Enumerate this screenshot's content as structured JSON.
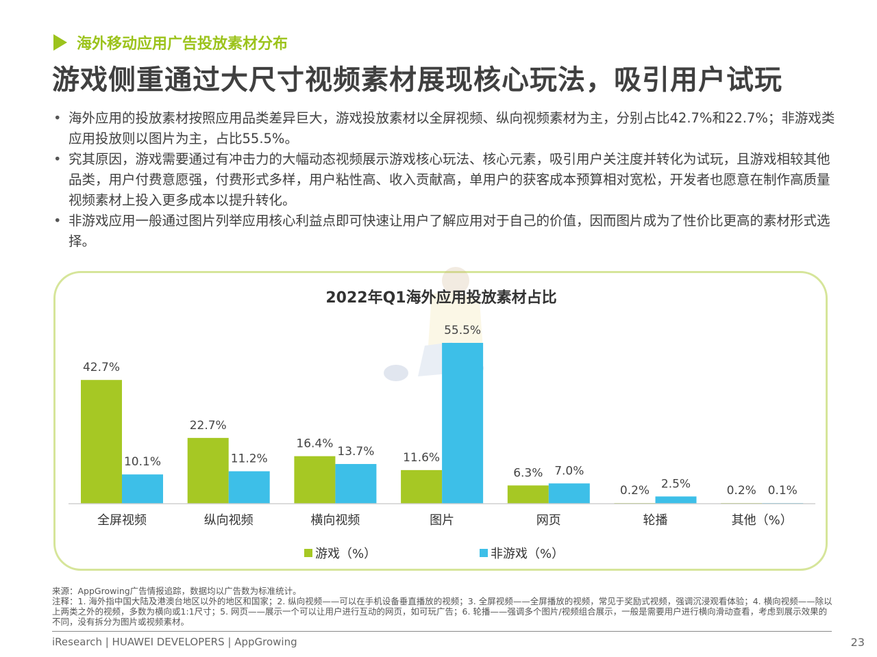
{
  "section_label": "海外移动应用广告投放素材分布",
  "headline": "游戏侧重通过大尺寸视频素材展现核心玩法，吸引用户试玩",
  "bullets": [
    "海外应用的投放素材按照应用品类差异巨大，游戏投放素材以全屏视频、纵向视频素材为主，分别占比42.7%和22.7%；非游戏类应用投放则以图片为主，占比55.5%。",
    "究其原因，游戏需要通过有冲击力的大幅动态视频展示游戏核心玩法、核心元素，吸引用户关注度并转化为试玩，且游戏相较其他品类，用户付费意愿强，付费形式多样，用户粘性高、收入贡献高，单用户的获客成本预算相对宽松，开发者也愿意在制作高质量视频素材上投入更多成本以提升转化。",
    "非游戏应用一般通过图片列举应用核心利益点即可快速让用户了解应用对于自己的价值，因而图片成为了性价比更高的素材形式选择。"
  ],
  "chart_data": {
    "type": "bar",
    "title": "2022年Q1海外应用投放素材占比",
    "categories": [
      "全屏视频",
      "纵向视频",
      "横向视频",
      "图片",
      "网页",
      "轮播",
      "其他（%）"
    ],
    "series": [
      {
        "name": "游戏（%）",
        "values": [
          42.7,
          22.7,
          16.4,
          11.6,
          6.3,
          0.2,
          0.2
        ],
        "color": "#a6c824"
      },
      {
        "name": "非游戏（%）",
        "values": [
          10.1,
          11.2,
          13.7,
          55.5,
          7.0,
          2.5,
          0.1
        ],
        "color": "#3dbfe8"
      }
    ],
    "value_labels": [
      [
        "42.7%",
        "22.7%",
        "16.4%",
        "11.6%",
        "6.3%",
        "0.2%",
        "0.2%"
      ],
      [
        "10.1%",
        "11.2%",
        "13.7%",
        "55.5%",
        "7.0%",
        "2.5%",
        "0.1%"
      ]
    ],
    "ylim": [
      0,
      60
    ],
    "grid": false,
    "legend_position": "bottom",
    "xlabel": "",
    "ylabel": ""
  },
  "footnote": {
    "source": "来源：AppGrowing广告情报追踪，数据均以广告数为标准统计。",
    "notes": "注释：1. 海外指中国大陆及港澳台地区以外的地区和国家；2. 纵向视频——可以在手机设备垂直播放的视频；3. 全屏视频——全屏播放的视频，常见于奖励式视频，强调沉浸观看体验；4. 横向视频——除以上两类之外的视频，多数为横向或1:1尺寸；5. 网页——展示一个可以让用户进行互动的网页，如可玩广告；6. 轮播——强调多个图片/视频组合展示，一般是需要用户进行横向滑动查看，考虑到展示效果的不同，没有拆分为图片或视频素材。"
  },
  "footer": {
    "brands": "iResearch | HUAWEI DEVELOPERS | AppGrowing",
    "page_number": "23"
  },
  "colors": {
    "accent_green": "#9cc31c",
    "bar_green": "#a6c824",
    "bar_blue": "#3dbfe8",
    "frame_border": "#d6e59a"
  }
}
